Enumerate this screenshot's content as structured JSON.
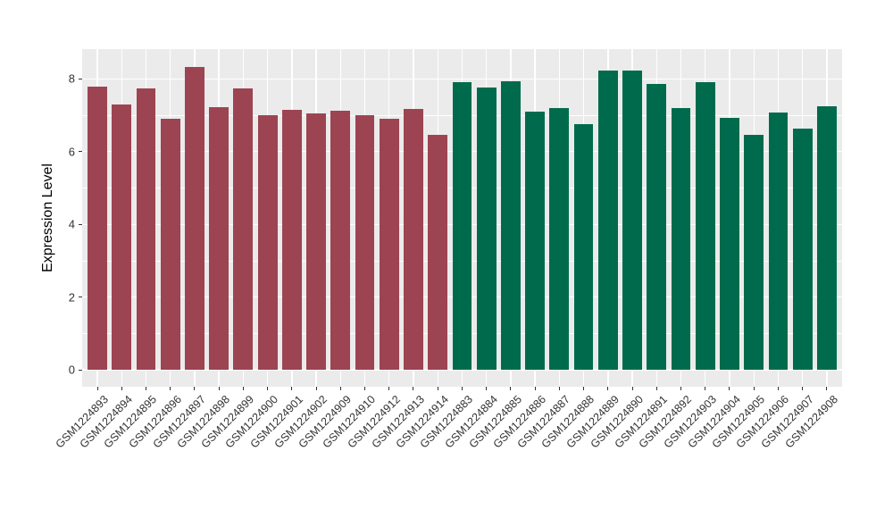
{
  "chart_data": {
    "type": "bar",
    "title": "",
    "xlabel": "",
    "ylabel": "Expression Level",
    "ylim": [
      -0.45,
      8.8
    ],
    "yticks": [
      0,
      2,
      4,
      6,
      8
    ],
    "yticks_minor": [
      1,
      3,
      5,
      7
    ],
    "grid": "on",
    "legend": "none",
    "panel_background": "#EBEBEB",
    "grid_color": "#FFFFFF",
    "tick_label_color": "#333333",
    "axis_title_color": "#000000",
    "series": [
      {
        "name": "left-group",
        "color": "#9D4452",
        "categories": [
          "GSM1224893",
          "GSM1224894",
          "GSM1224895",
          "GSM1224896",
          "GSM1224897",
          "GSM1224898",
          "GSM1224899",
          "GSM1224900",
          "GSM1224901",
          "GSM1224902",
          "GSM1224909",
          "GSM1224910",
          "GSM1224912",
          "GSM1224913",
          "GSM1224914"
        ],
        "values": [
          7.78,
          7.3,
          7.75,
          6.91,
          8.34,
          7.22,
          7.74,
          7.0,
          7.14,
          7.05,
          7.12,
          7.0,
          6.91,
          7.17,
          6.47
        ]
      },
      {
        "name": "right-group",
        "color": "#006B4C",
        "categories": [
          "GSM1224883",
          "GSM1224884",
          "GSM1224885",
          "GSM1224886",
          "GSM1224887",
          "GSM1224888",
          "GSM1224889",
          "GSM1224890",
          "GSM1224891",
          "GSM1224892",
          "GSM1224903",
          "GSM1224904",
          "GSM1224905",
          "GSM1224906",
          "GSM1224907",
          "GSM1224908"
        ],
        "values": [
          7.92,
          7.77,
          7.93,
          7.1,
          7.21,
          6.76,
          8.23,
          8.23,
          7.86,
          7.19,
          7.92,
          6.93,
          6.47,
          7.07,
          6.64,
          7.25
        ]
      }
    ]
  }
}
